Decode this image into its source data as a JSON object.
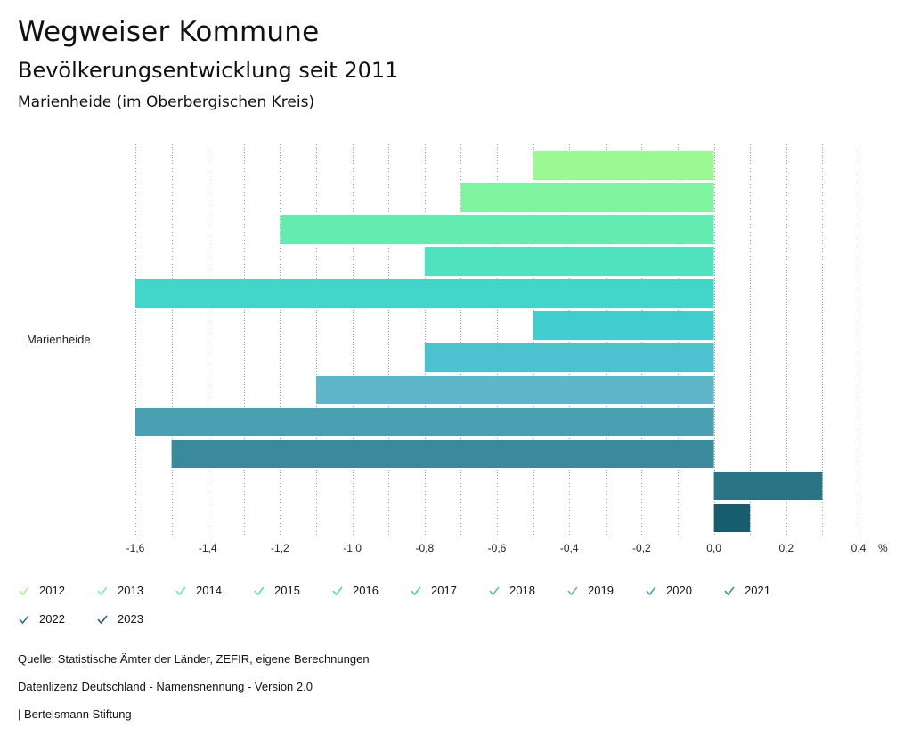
{
  "header": {
    "title": "Wegweiser Kommune",
    "subtitle": "Bevölkerungsentwicklung seit 2011",
    "region": "Marienheide (im Oberbergischen Kreis)"
  },
  "footer": {
    "source": "Quelle: Statistische Ämter der Länder, ZEFIR, eigene Berechnungen",
    "license": "Datenlizenz Deutschland - Namensnennung - Version 2.0",
    "publisher": "| Bertelsmann Stiftung"
  },
  "chart_data": {
    "type": "bar",
    "orientation": "horizontal",
    "category": "Marienheide",
    "unit": "%",
    "xlim": [
      -1.6,
      0.4
    ],
    "ticks": [
      -1.6,
      -1.4,
      -1.2,
      -1.0,
      -0.8,
      -0.6,
      -0.4,
      -0.2,
      0.0,
      0.2,
      0.4
    ],
    "tick_labels": [
      "-1,6",
      "-1,4",
      "-1,2",
      "-1,0",
      "-0,8",
      "-0,6",
      "-0,4",
      "-0,2",
      "0,0",
      "0,2",
      "0,4"
    ],
    "grid": true,
    "series": [
      {
        "name": "2012",
        "value": -0.5,
        "color": "#9cf893"
      },
      {
        "name": "2013",
        "value": -0.7,
        "color": "#80f3a1"
      },
      {
        "name": "2014",
        "value": -1.2,
        "color": "#63ebb0"
      },
      {
        "name": "2015",
        "value": -0.8,
        "color": "#50e2bf"
      },
      {
        "name": "2016",
        "value": -1.6,
        "color": "#41d6c9"
      },
      {
        "name": "2017",
        "value": -0.5,
        "color": "#41cccd"
      },
      {
        "name": "2018",
        "value": -0.8,
        "color": "#4cc1cf"
      },
      {
        "name": "2019",
        "value": -1.1,
        "color": "#5db6c9"
      },
      {
        "name": "2020",
        "value": -1.6,
        "color": "#4a9fb3"
      },
      {
        "name": "2021",
        "value": -1.5,
        "color": "#3b8a9b"
      },
      {
        "name": "2022",
        "value": 0.3,
        "color": "#2a7485"
      },
      {
        "name": "2023",
        "value": 0.1,
        "color": "#175d6e"
      }
    ]
  }
}
